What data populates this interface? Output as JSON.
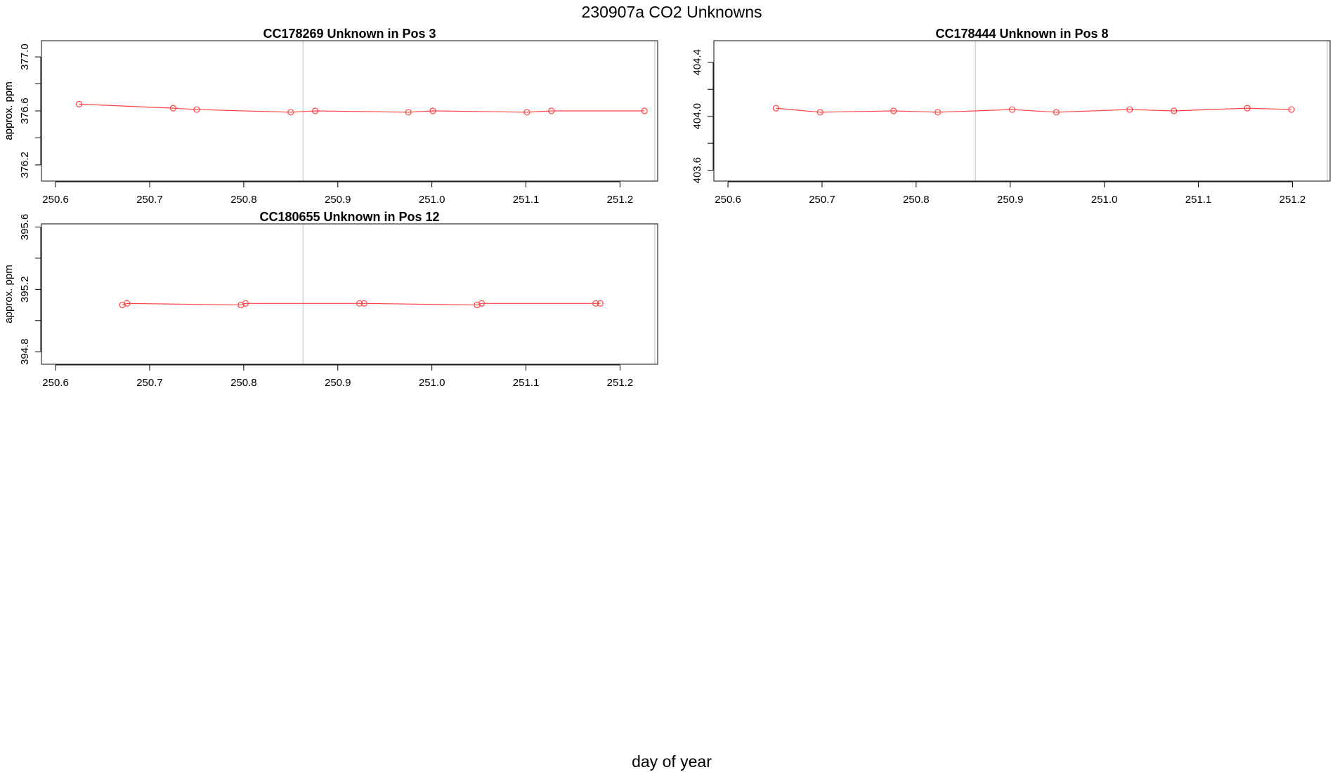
{
  "figure": {
    "title": "230907a  CO2 Unknowns",
    "xlabel": "day of year"
  },
  "colors": {
    "series": "#ff4040",
    "vline": "#c8c8c8",
    "frame": "#333333"
  },
  "chart_data": [
    {
      "type": "line",
      "title": "CC178269    Unknown in Pos 3",
      "ylabel": "approx. ppm",
      "xlim": [
        250.585,
        251.24
      ],
      "ylim": [
        376.08,
        377.12
      ],
      "xticks": [
        "250.6",
        "250.7",
        "250.8",
        "250.9",
        "251.0",
        "251.1",
        "251.2"
      ],
      "yticks": [
        "376.2",
        "376.6",
        "377.0"
      ],
      "vlines": [
        250.863,
        251.237
      ],
      "series": [
        {
          "x": [
            250.625,
            250.725,
            250.75,
            250.85,
            250.876,
            250.975,
            251.001,
            251.101,
            251.127,
            251.226
          ],
          "y": [
            376.65,
            376.62,
            376.61,
            376.59,
            376.6,
            376.59,
            376.6,
            376.59,
            376.6,
            376.6
          ]
        }
      ]
    },
    {
      "type": "line",
      "title": "CC178444    Unknown in Pos 8",
      "ylabel": "approx. ppm",
      "xlim": [
        250.585,
        251.24
      ],
      "ylim": [
        403.52,
        404.56
      ],
      "xticks": [
        "250.6",
        "250.7",
        "250.8",
        "250.9",
        "251.0",
        "251.1",
        "251.2"
      ],
      "yticks": [
        "403.6",
        "404.0",
        "404.4"
      ],
      "vlines": [
        250.863,
        251.237
      ],
      "series": [
        {
          "x": [
            250.651,
            250.698,
            250.776,
            250.823,
            250.902,
            250.949,
            251.027,
            251.074,
            251.152,
            251.199
          ],
          "y": [
            404.06,
            404.03,
            404.04,
            404.03,
            404.05,
            404.03,
            404.05,
            404.04,
            404.06,
            404.05
          ]
        }
      ]
    },
    {
      "type": "line",
      "title": "CC180655    Unknown in Pos 12",
      "ylabel": "approx. ppm",
      "xlim": [
        250.585,
        251.24
      ],
      "ylim": [
        394.72,
        395.62
      ],
      "xticks": [
        "250.6",
        "250.7",
        "250.8",
        "250.9",
        "251.0",
        "251.1",
        "251.2"
      ],
      "yticks": [
        "394.8",
        "395.2",
        "395.6"
      ],
      "vlines": [
        250.863,
        251.237
      ],
      "series": [
        {
          "x": [
            250.671,
            250.676,
            250.797,
            250.802,
            250.923,
            250.928,
            251.048,
            251.053,
            251.174,
            251.179
          ],
          "y": [
            395.1,
            395.11,
            395.1,
            395.11,
            395.11,
            395.11,
            395.1,
            395.11,
            395.11,
            395.11
          ]
        }
      ]
    }
  ]
}
